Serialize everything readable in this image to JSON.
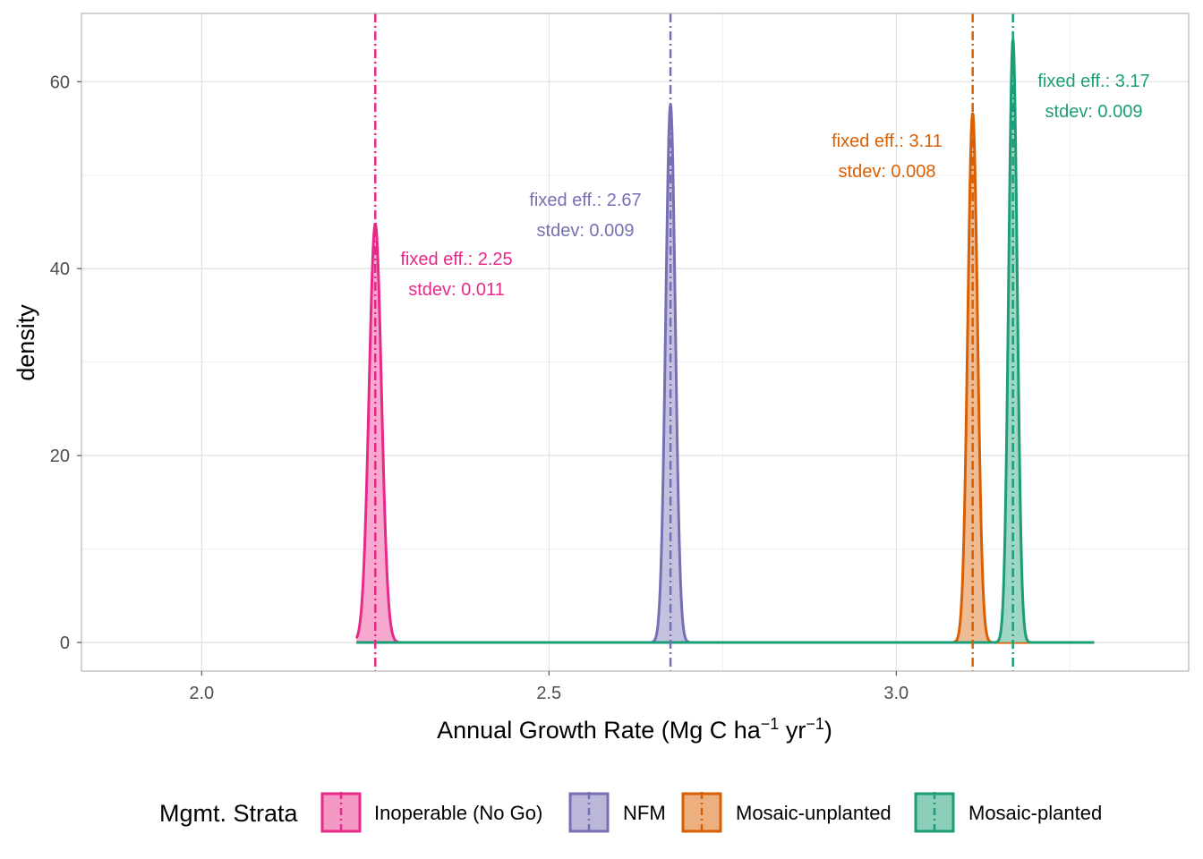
{
  "chart_data": {
    "type": "density",
    "xlabel_parts": [
      "Annual Growth Rate (Mg C ha",
      "−1",
      " yr",
      "−1",
      ")"
    ],
    "ylabel": "density",
    "xlim": [
      1.827,
      3.421
    ],
    "ylim": [
      -3.06,
      67.3
    ],
    "x_ticks": [
      {
        "v": 2.0,
        "label": "2.0"
      },
      {
        "v": 2.5,
        "label": "2.5"
      },
      {
        "v": 3.0,
        "label": "3.0"
      }
    ],
    "y_ticks": [
      {
        "v": 0,
        "label": "0"
      },
      {
        "v": 20,
        "label": "20"
      },
      {
        "v": 40,
        "label": "40"
      },
      {
        "v": 60,
        "label": "60"
      }
    ],
    "x_minor": [
      2.25,
      2.75,
      3.25
    ],
    "y_minor": [
      10,
      30,
      50
    ],
    "grid": true,
    "density_range": [
      2.223,
      3.285
    ],
    "legend": {
      "title": "Mgmt. Strata",
      "position": "bottom"
    },
    "series": [
      {
        "name": "Inoperable (No Go)",
        "color": "#E7298A",
        "fill": "#F499C5",
        "fixed_effect": 2.25,
        "stdev": 0.011,
        "peak_density": 44.8,
        "annotation": [
          "fixed eff.: 2.25",
          "stdev: 0.011"
        ]
      },
      {
        "name": "NFM",
        "color": "#7570B3",
        "fill": "#BAB7D9",
        "fixed_effect": 2.675,
        "stdev": 0.009,
        "peak_density": 57.6,
        "annotation": [
          "fixed eff.: 2.67",
          "stdev: 0.009"
        ]
      },
      {
        "name": "Mosaic-unplanted",
        "color": "#D95F02",
        "fill": "#ECAF80",
        "fixed_effect": 3.11,
        "stdev": 0.008,
        "peak_density": 56.7,
        "annotation": [
          "fixed eff.: 3.11",
          "stdev: 0.008"
        ]
      },
      {
        "name": "Mosaic-planted",
        "color": "#1B9E77",
        "fill": "#8DCEBB",
        "fixed_effect": 3.168,
        "stdev": 0.009,
        "peak_density": 64.6,
        "annotation": [
          "fixed eff.: 3.17",
          "stdev: 0.009"
        ]
      }
    ]
  }
}
